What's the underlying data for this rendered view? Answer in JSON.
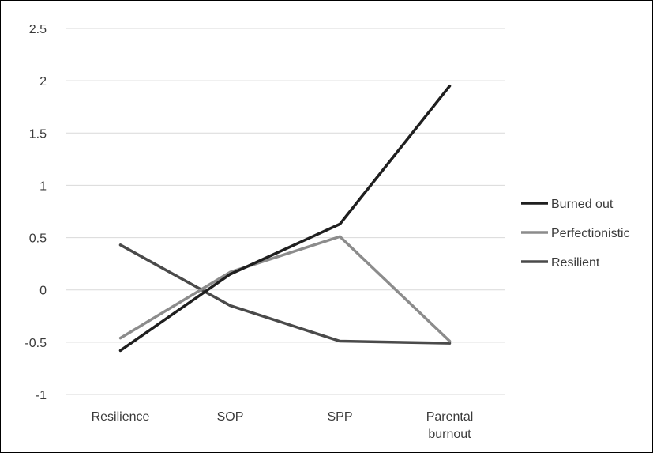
{
  "chart_data": {
    "type": "line",
    "title": "",
    "xlabel": "",
    "ylabel": "",
    "categories": [
      "Resilience",
      "SOP",
      "SPP",
      "Parental burnout"
    ],
    "category_lines": [
      [
        "Resilience"
      ],
      [
        "SOP"
      ],
      [
        "SPP"
      ],
      [
        "Parental",
        "burnout"
      ]
    ],
    "ylim": [
      -1,
      2.5
    ],
    "yticks": [
      -1,
      -0.5,
      0,
      0.5,
      1,
      1.5,
      2,
      2.5
    ],
    "ytick_labels": [
      "-1",
      "-0.5",
      "0",
      "0.5",
      "1",
      "1.5",
      "2",
      "2.5"
    ],
    "grid": true,
    "legend_position": "right",
    "series": [
      {
        "name": "Burned out",
        "color": "#1f1f1f",
        "values": [
          -0.58,
          0.15,
          0.63,
          1.95
        ]
      },
      {
        "name": "Perfectionistic",
        "color": "#8c8c8c",
        "values": [
          -0.46,
          0.17,
          0.51,
          -0.49
        ]
      },
      {
        "name": "Resilient",
        "color": "#4a4a4a",
        "values": [
          0.43,
          -0.15,
          -0.49,
          -0.51
        ]
      }
    ]
  }
}
